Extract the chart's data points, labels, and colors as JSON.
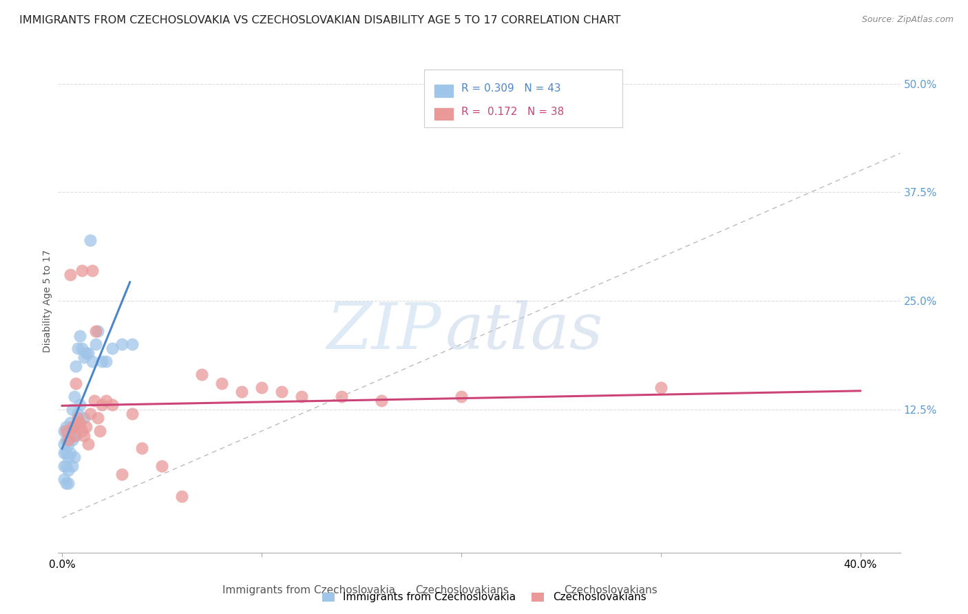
{
  "title": "IMMIGRANTS FROM CZECHOSLOVAKIA VS CZECHOSLOVAKIAN DISABILITY AGE 5 TO 17 CORRELATION CHART",
  "source": "Source: ZipAtlas.com",
  "ylabel": "Disability Age 5 to 17",
  "ytick_values": [
    0.125,
    0.25,
    0.375,
    0.5
  ],
  "ytick_labels": [
    "12.5%",
    "25.0%",
    "37.5%",
    "50.0%"
  ],
  "xlim": [
    -0.002,
    0.42
  ],
  "ylim": [
    -0.04,
    0.54
  ],
  "legend_label1": "Immigrants from Czechoslovakia",
  "legend_label2": "Czechoslovakians",
  "R1": "0.309",
  "N1": "43",
  "R2": "0.172",
  "N2": "38",
  "color_blue": "#9fc5e8",
  "color_pink": "#ea9999",
  "color_blue_line": "#4a86c8",
  "color_pink_line": "#cc4477",
  "color_diag": "#bbbbbb",
  "scatter_blue_x": [
    0.001,
    0.001,
    0.001,
    0.001,
    0.001,
    0.002,
    0.002,
    0.002,
    0.002,
    0.002,
    0.003,
    0.003,
    0.003,
    0.003,
    0.003,
    0.004,
    0.004,
    0.005,
    0.005,
    0.005,
    0.006,
    0.006,
    0.006,
    0.007,
    0.007,
    0.008,
    0.008,
    0.009,
    0.009,
    0.01,
    0.011,
    0.011,
    0.012,
    0.013,
    0.014,
    0.015,
    0.017,
    0.018,
    0.02,
    0.022,
    0.025,
    0.03,
    0.035
  ],
  "scatter_blue_y": [
    0.1,
    0.085,
    0.075,
    0.06,
    0.045,
    0.105,
    0.09,
    0.075,
    0.06,
    0.04,
    0.1,
    0.085,
    0.07,
    0.055,
    0.04,
    0.11,
    0.075,
    0.125,
    0.09,
    0.06,
    0.14,
    0.105,
    0.07,
    0.175,
    0.095,
    0.195,
    0.12,
    0.21,
    0.13,
    0.195,
    0.185,
    0.115,
    0.19,
    0.19,
    0.32,
    0.18,
    0.2,
    0.215,
    0.18,
    0.18,
    0.195,
    0.2,
    0.2
  ],
  "scatter_pink_x": [
    0.002,
    0.003,
    0.004,
    0.005,
    0.006,
    0.007,
    0.007,
    0.008,
    0.009,
    0.01,
    0.011,
    0.012,
    0.013,
    0.014,
    0.016,
    0.017,
    0.018,
    0.019,
    0.02,
    0.022,
    0.025,
    0.03,
    0.035,
    0.04,
    0.05,
    0.06,
    0.07,
    0.08,
    0.09,
    0.1,
    0.11,
    0.12,
    0.14,
    0.16,
    0.2,
    0.3,
    0.01,
    0.015
  ],
  "scatter_pink_y": [
    0.1,
    0.09,
    0.28,
    0.105,
    0.095,
    0.155,
    0.105,
    0.115,
    0.11,
    0.1,
    0.095,
    0.105,
    0.085,
    0.12,
    0.135,
    0.215,
    0.115,
    0.1,
    0.13,
    0.135,
    0.13,
    0.05,
    0.12,
    0.08,
    0.06,
    0.025,
    0.165,
    0.155,
    0.145,
    0.15,
    0.145,
    0.14,
    0.14,
    0.135,
    0.14,
    0.15,
    0.285,
    0.285
  ],
  "watermark_zip": "ZIP",
  "watermark_atlas": "atlas",
  "title_fontsize": 11.5,
  "axis_label_fontsize": 10,
  "tick_fontsize": 11
}
